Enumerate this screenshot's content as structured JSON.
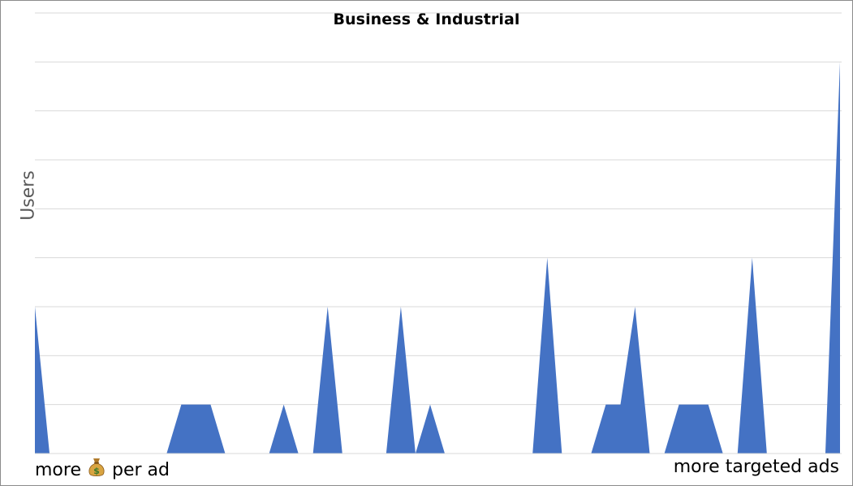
{
  "chart_data": {
    "type": "area",
    "title": "Business & Industrial",
    "ylabel": "Users",
    "xlabel": "",
    "x_left_label_before": "more",
    "x_left_label_after": "per ad",
    "x_left_icon": "money-bag-icon",
    "x_right_label": "more targeted ads",
    "ylim": [
      0,
      9
    ],
    "grid": true,
    "gridlines": 9,
    "legend": "none",
    "color": "#4472C4",
    "values": [
      3,
      0,
      0,
      0,
      0,
      0,
      0,
      0,
      0,
      0,
      1,
      1,
      1,
      0,
      0,
      0,
      0,
      1,
      0,
      0,
      3,
      0,
      0,
      0,
      0,
      3,
      0,
      1,
      0,
      0,
      0,
      0,
      0,
      0,
      0,
      4,
      0,
      0,
      0,
      1,
      1,
      3,
      0,
      0,
      1,
      1,
      1,
      0,
      0,
      4,
      0,
      0,
      0,
      0,
      0,
      8
    ]
  }
}
